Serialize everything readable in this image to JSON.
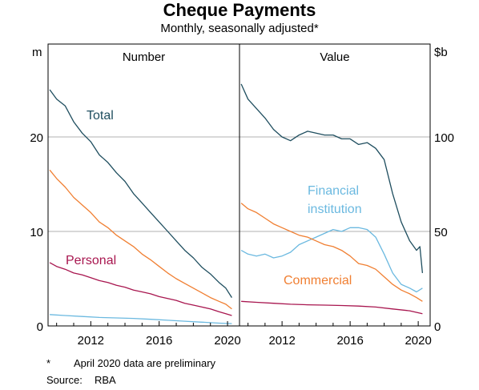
{
  "title": "Cheque Payments",
  "subtitle": "Monthly, seasonally adjusted*",
  "footnote": {
    "mark": "*",
    "text": "April 2020 data are preliminary"
  },
  "source": {
    "label": "Source:",
    "text": "RBA"
  },
  "colors": {
    "total": "#1f4e5f",
    "personal": "#a8164f",
    "financial": "#6bb9e0",
    "commercial": "#f07f32",
    "unlabelled_small": "#6bb9e0",
    "grid": "#b0b0b0"
  },
  "chart_data": [
    {
      "type": "line",
      "panel_title": "Number",
      "ylabel": "m",
      "ylim": [
        0,
        25
      ],
      "yticks": [
        0,
        10,
        20
      ],
      "xlim": [
        2009.5,
        2020.7
      ],
      "xticks": [
        2012,
        2016,
        2020
      ],
      "grid": true,
      "series": [
        {
          "name": "Total",
          "color_key": "total",
          "points": [
            [
              2009.6,
              25.0
            ],
            [
              2010.0,
              24.0
            ],
            [
              2010.5,
              23.3
            ],
            [
              2011.0,
              21.6
            ],
            [
              2011.5,
              20.4
            ],
            [
              2012.0,
              19.5
            ],
            [
              2012.5,
              18.1
            ],
            [
              2013.0,
              17.3
            ],
            [
              2013.5,
              16.2
            ],
            [
              2014.0,
              15.3
            ],
            [
              2014.5,
              14.0
            ],
            [
              2015.0,
              13.0
            ],
            [
              2015.5,
              12.0
            ],
            [
              2016.0,
              11.0
            ],
            [
              2016.5,
              10.0
            ],
            [
              2017.0,
              9.0
            ],
            [
              2017.5,
              8.0
            ],
            [
              2018.0,
              7.2
            ],
            [
              2018.5,
              6.2
            ],
            [
              2019.0,
              5.5
            ],
            [
              2019.5,
              4.6
            ],
            [
              2019.9,
              4.0
            ],
            [
              2020.25,
              3.0
            ]
          ]
        },
        {
          "name": "",
          "color_key": "commercial",
          "points": [
            [
              2009.6,
              16.5
            ],
            [
              2010.0,
              15.6
            ],
            [
              2010.5,
              14.7
            ],
            [
              2011.0,
              13.6
            ],
            [
              2011.5,
              12.8
            ],
            [
              2012.0,
              12.0
            ],
            [
              2012.5,
              11.0
            ],
            [
              2013.0,
              10.4
            ],
            [
              2013.5,
              9.6
            ],
            [
              2014.0,
              9.0
            ],
            [
              2014.5,
              8.4
            ],
            [
              2015.0,
              7.6
            ],
            [
              2015.5,
              7.0
            ],
            [
              2016.0,
              6.3
            ],
            [
              2016.5,
              5.6
            ],
            [
              2017.0,
              5.0
            ],
            [
              2017.5,
              4.5
            ],
            [
              2018.0,
              4.0
            ],
            [
              2018.5,
              3.5
            ],
            [
              2019.0,
              3.0
            ],
            [
              2019.5,
              2.6
            ],
            [
              2019.9,
              2.3
            ],
            [
              2020.25,
              1.8
            ]
          ]
        },
        {
          "name": "Personal",
          "color_key": "personal",
          "points": [
            [
              2009.6,
              6.7
            ],
            [
              2010.0,
              6.3
            ],
            [
              2010.5,
              6.0
            ],
            [
              2011.0,
              5.6
            ],
            [
              2011.5,
              5.4
            ],
            [
              2012.0,
              5.1
            ],
            [
              2012.5,
              4.8
            ],
            [
              2013.0,
              4.6
            ],
            [
              2013.5,
              4.3
            ],
            [
              2014.0,
              4.1
            ],
            [
              2014.5,
              3.8
            ],
            [
              2015.0,
              3.6
            ],
            [
              2015.5,
              3.4
            ],
            [
              2016.0,
              3.1
            ],
            [
              2016.5,
              2.9
            ],
            [
              2017.0,
              2.7
            ],
            [
              2017.5,
              2.4
            ],
            [
              2018.0,
              2.2
            ],
            [
              2018.5,
              2.0
            ],
            [
              2019.0,
              1.8
            ],
            [
              2019.5,
              1.5
            ],
            [
              2019.9,
              1.3
            ],
            [
              2020.25,
              1.1
            ]
          ]
        },
        {
          "name": "",
          "color_key": "unlabelled_small",
          "points": [
            [
              2009.6,
              1.2
            ],
            [
              2010.5,
              1.1
            ],
            [
              2011.5,
              1.0
            ],
            [
              2012.5,
              0.9
            ],
            [
              2013.5,
              0.85
            ],
            [
              2014.5,
              0.8
            ],
            [
              2015.5,
              0.7
            ],
            [
              2016.5,
              0.6
            ],
            [
              2017.5,
              0.5
            ],
            [
              2018.5,
              0.4
            ],
            [
              2019.5,
              0.3
            ],
            [
              2020.25,
              0.25
            ]
          ]
        }
      ]
    },
    {
      "type": "line",
      "panel_title": "Value",
      "ylabel": "$b",
      "ylim": [
        0,
        125
      ],
      "yticks": [
        0,
        50,
        100
      ],
      "xlim": [
        2009.5,
        2020.7
      ],
      "xticks": [
        2012,
        2016,
        2020
      ],
      "grid": true,
      "series": [
        {
          "name": "Total",
          "color_key": "total",
          "points": [
            [
              2009.6,
              128
            ],
            [
              2010.0,
              120
            ],
            [
              2010.5,
              115
            ],
            [
              2011.0,
              110
            ],
            [
              2011.5,
              104
            ],
            [
              2012.0,
              100
            ],
            [
              2012.5,
              98
            ],
            [
              2013.0,
              101
            ],
            [
              2013.5,
              103
            ],
            [
              2014.0,
              102
            ],
            [
              2014.5,
              101
            ],
            [
              2015.0,
              101
            ],
            [
              2015.5,
              99
            ],
            [
              2016.0,
              99
            ],
            [
              2016.5,
              96
            ],
            [
              2017.0,
              97
            ],
            [
              2017.5,
              94
            ],
            [
              2018.0,
              88
            ],
            [
              2018.5,
              70
            ],
            [
              2019.0,
              55
            ],
            [
              2019.5,
              45
            ],
            [
              2019.9,
              40
            ],
            [
              2020.1,
              42
            ],
            [
              2020.25,
              28
            ]
          ]
        },
        {
          "name": "Financial institution",
          "color_key": "financial",
          "points": [
            [
              2009.6,
              40
            ],
            [
              2010.0,
              38
            ],
            [
              2010.5,
              37
            ],
            [
              2011.0,
              38
            ],
            [
              2011.5,
              36
            ],
            [
              2012.0,
              37
            ],
            [
              2012.5,
              39
            ],
            [
              2013.0,
              43
            ],
            [
              2013.5,
              45
            ],
            [
              2014.0,
              47
            ],
            [
              2014.5,
              49
            ],
            [
              2015.0,
              51
            ],
            [
              2015.5,
              50
            ],
            [
              2016.0,
              52
            ],
            [
              2016.5,
              52
            ],
            [
              2017.0,
              51
            ],
            [
              2017.5,
              47
            ],
            [
              2018.0,
              38
            ],
            [
              2018.5,
              28
            ],
            [
              2019.0,
              22
            ],
            [
              2019.5,
              20
            ],
            [
              2019.9,
              18
            ],
            [
              2020.25,
              20
            ]
          ]
        },
        {
          "name": "Commercial",
          "color_key": "commercial",
          "points": [
            [
              2009.6,
              65
            ],
            [
              2010.0,
              62
            ],
            [
              2010.5,
              60
            ],
            [
              2011.0,
              57
            ],
            [
              2011.5,
              54
            ],
            [
              2012.0,
              52
            ],
            [
              2012.5,
              50
            ],
            [
              2013.0,
              48
            ],
            [
              2013.5,
              47
            ],
            [
              2014.0,
              45
            ],
            [
              2014.5,
              43
            ],
            [
              2015.0,
              42
            ],
            [
              2015.5,
              40
            ],
            [
              2016.0,
              37
            ],
            [
              2016.5,
              33
            ],
            [
              2017.0,
              32
            ],
            [
              2017.5,
              30
            ],
            [
              2018.0,
              26
            ],
            [
              2018.5,
              22
            ],
            [
              2019.0,
              19
            ],
            [
              2019.5,
              17
            ],
            [
              2019.9,
              15
            ],
            [
              2020.25,
              13
            ]
          ]
        },
        {
          "name": "",
          "color_key": "personal",
          "points": [
            [
              2009.6,
              13
            ],
            [
              2010.5,
              12.5
            ],
            [
              2011.5,
              12
            ],
            [
              2012.5,
              11.5
            ],
            [
              2013.5,
              11.2
            ],
            [
              2014.5,
              11
            ],
            [
              2015.5,
              10.8
            ],
            [
              2016.5,
              10.5
            ],
            [
              2017.5,
              10
            ],
            [
              2018.5,
              9
            ],
            [
              2019.5,
              8
            ],
            [
              2020.25,
              6.5
            ]
          ]
        }
      ]
    }
  ],
  "panel_labels": [
    {
      "key": "total",
      "text": "Total"
    },
    {
      "key": "personal",
      "text": "Personal"
    },
    {
      "key": "financial_1",
      "text": "Financial"
    },
    {
      "key": "financial_2",
      "text": "institution"
    },
    {
      "key": "commercial",
      "text": "Commercial"
    }
  ]
}
